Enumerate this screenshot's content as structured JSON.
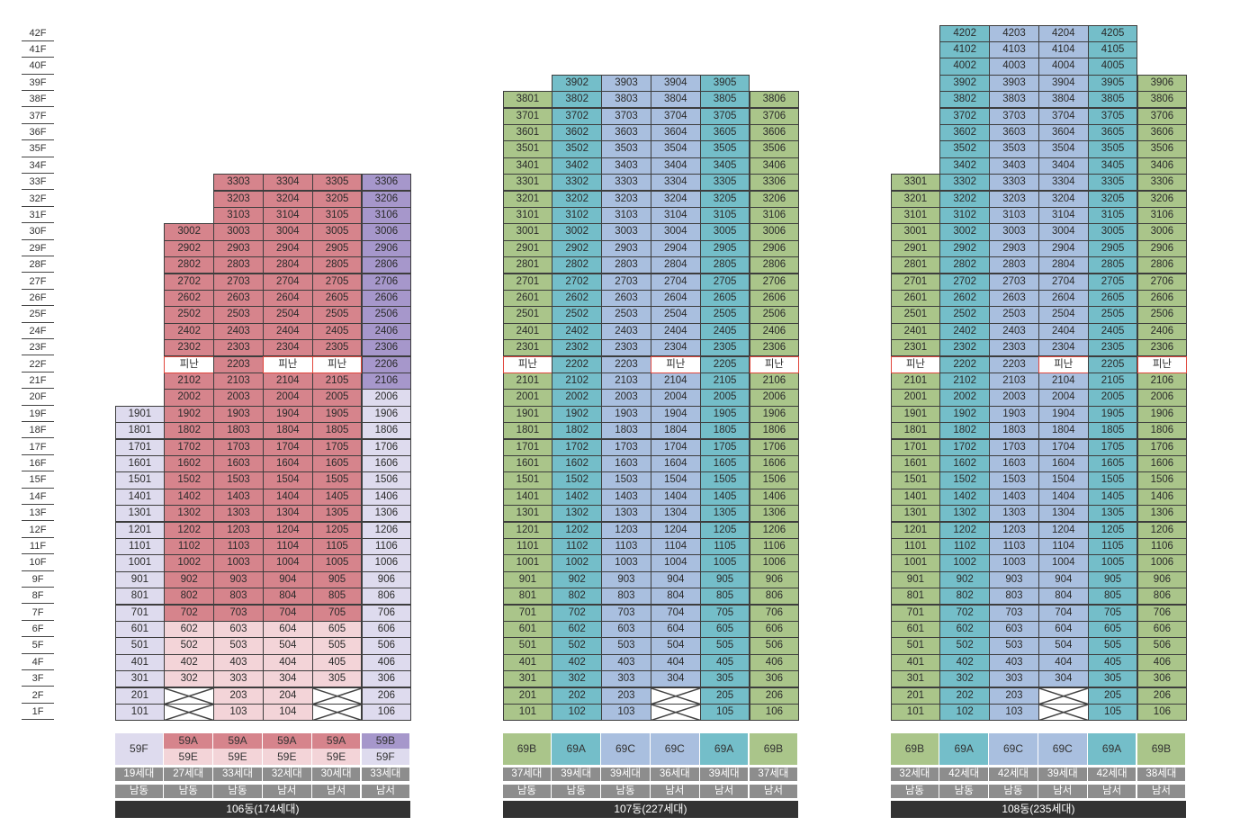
{
  "colors": {
    "pink_dark": "#d6848c",
    "pink_light": "#f3d4d8",
    "purple": "#a697cb",
    "lavender": "#dedbee",
    "green": "#aac58a",
    "teal": "#74bec9",
    "blue_light": "#a9bfdf",
    "refuge_border": "#e0463c",
    "band": "#8d8d8d",
    "dark": "#333333"
  },
  "floors": [
    "42F",
    "41F",
    "40F",
    "39F",
    "38F",
    "37F",
    "36F",
    "35F",
    "34F",
    "33F",
    "32F",
    "31F",
    "30F",
    "29F",
    "28F",
    "27F",
    "26F",
    "25F",
    "24F",
    "23F",
    "22F",
    "21F",
    "20F",
    "19F",
    "18F",
    "17F",
    "16F",
    "15F",
    "14F",
    "13F",
    "12F",
    "11F",
    "10F",
    "9F",
    "8F",
    "7F",
    "6F",
    "5F",
    "4F",
    "3F",
    "2F",
    "1F"
  ],
  "refuge_label": "피난",
  "buildings": [
    {
      "name": "106동(174세대)",
      "columns": [
        {
          "line": "01",
          "top": 19,
          "refuge": [],
          "empty": [],
          "type": "59F",
          "type_sub": "",
          "households": "19세대",
          "direction": "남동",
          "colors": [
            {
              "from": 1,
              "to": 19,
              "color": "lavender"
            }
          ],
          "type_color": "lavender",
          "sub_color": ""
        },
        {
          "line": "02",
          "top": 30,
          "refuge": [
            22
          ],
          "empty": [
            1,
            2
          ],
          "type": "59A",
          "type_sub": "59E",
          "households": "27세대",
          "direction": "남동",
          "colors": [
            {
              "from": 1,
              "to": 6,
              "color": "pink_light"
            },
            {
              "from": 7,
              "to": 30,
              "color": "pink_dark"
            }
          ],
          "type_color": "pink_dark",
          "sub_color": "pink_light"
        },
        {
          "line": "03",
          "top": 33,
          "refuge": [],
          "empty": [],
          "type": "59A",
          "type_sub": "59E",
          "households": "33세대",
          "direction": "남동",
          "colors": [
            {
              "from": 1,
              "to": 6,
              "color": "pink_light"
            },
            {
              "from": 7,
              "to": 33,
              "color": "pink_dark"
            }
          ],
          "type_color": "pink_dark",
          "sub_color": "pink_light"
        },
        {
          "line": "04",
          "top": 33,
          "refuge": [
            22
          ],
          "empty": [],
          "type": "59A",
          "type_sub": "59E",
          "households": "32세대",
          "direction": "남서",
          "colors": [
            {
              "from": 1,
              "to": 6,
              "color": "pink_light"
            },
            {
              "from": 7,
              "to": 33,
              "color": "pink_dark"
            }
          ],
          "type_color": "pink_dark",
          "sub_color": "pink_light"
        },
        {
          "line": "05",
          "top": 33,
          "refuge": [
            22
          ],
          "empty": [
            1,
            2
          ],
          "type": "59A",
          "type_sub": "59E",
          "households": "30세대",
          "direction": "남서",
          "colors": [
            {
              "from": 1,
              "to": 6,
              "color": "pink_light"
            },
            {
              "from": 7,
              "to": 33,
              "color": "pink_dark"
            }
          ],
          "type_color": "pink_dark",
          "sub_color": "pink_light"
        },
        {
          "line": "06",
          "top": 33,
          "refuge": [],
          "empty": [],
          "type": "59B",
          "type_sub": "59F",
          "households": "33세대",
          "direction": "남서",
          "colors": [
            {
              "from": 1,
              "to": 20,
              "color": "lavender"
            },
            {
              "from": 21,
              "to": 33,
              "color": "purple"
            }
          ],
          "type_color": "purple",
          "sub_color": "lavender"
        }
      ]
    },
    {
      "name": "107동(227세대)",
      "columns": [
        {
          "line": "01",
          "top": 38,
          "refuge": [
            22
          ],
          "empty": [],
          "type": "69B",
          "type_sub": "",
          "households": "37세대",
          "direction": "남동",
          "colors": [
            {
              "from": 1,
              "to": 38,
              "color": "green"
            }
          ],
          "type_color": "green",
          "sub_color": ""
        },
        {
          "line": "02",
          "top": 39,
          "refuge": [],
          "empty": [],
          "type": "69A",
          "type_sub": "",
          "households": "39세대",
          "direction": "남동",
          "colors": [
            {
              "from": 1,
              "to": 39,
              "color": "teal"
            }
          ],
          "type_color": "teal",
          "sub_color": ""
        },
        {
          "line": "03",
          "top": 39,
          "refuge": [],
          "empty": [],
          "type": "69C",
          "type_sub": "",
          "households": "39세대",
          "direction": "남동",
          "colors": [
            {
              "from": 1,
              "to": 39,
              "color": "blue_light"
            }
          ],
          "type_color": "blue_light",
          "sub_color": ""
        },
        {
          "line": "04",
          "top": 39,
          "refuge": [
            22
          ],
          "empty": [
            1,
            2
          ],
          "type": "69C",
          "type_sub": "",
          "households": "36세대",
          "direction": "남서",
          "colors": [
            {
              "from": 1,
              "to": 39,
              "color": "blue_light"
            }
          ],
          "type_color": "blue_light",
          "sub_color": ""
        },
        {
          "line": "05",
          "top": 39,
          "refuge": [],
          "empty": [],
          "type": "69A",
          "type_sub": "",
          "households": "39세대",
          "direction": "남서",
          "colors": [
            {
              "from": 1,
              "to": 39,
              "color": "teal"
            }
          ],
          "type_color": "teal",
          "sub_color": ""
        },
        {
          "line": "06",
          "top": 38,
          "refuge": [
            22
          ],
          "empty": [],
          "type": "69B",
          "type_sub": "",
          "households": "37세대",
          "direction": "남서",
          "colors": [
            {
              "from": 1,
              "to": 38,
              "color": "green"
            }
          ],
          "type_color": "green",
          "sub_color": ""
        }
      ]
    },
    {
      "name": "108동(235세대)",
      "columns": [
        {
          "line": "01",
          "top": 33,
          "refuge": [
            22
          ],
          "empty": [],
          "type": "69B",
          "type_sub": "",
          "households": "32세대",
          "direction": "남동",
          "colors": [
            {
              "from": 1,
              "to": 33,
              "color": "green"
            }
          ],
          "type_color": "green",
          "sub_color": ""
        },
        {
          "line": "02",
          "top": 42,
          "refuge": [],
          "empty": [],
          "type": "69A",
          "type_sub": "",
          "households": "42세대",
          "direction": "남동",
          "colors": [
            {
              "from": 1,
              "to": 42,
              "color": "teal"
            }
          ],
          "type_color": "teal",
          "sub_color": ""
        },
        {
          "line": "03",
          "top": 42,
          "refuge": [],
          "empty": [],
          "type": "69C",
          "type_sub": "",
          "households": "42세대",
          "direction": "남동",
          "colors": [
            {
              "from": 1,
              "to": 42,
              "color": "blue_light"
            }
          ],
          "type_color": "blue_light",
          "sub_color": ""
        },
        {
          "line": "04",
          "top": 42,
          "refuge": [
            22
          ],
          "empty": [
            1,
            2
          ],
          "type": "69C",
          "type_sub": "",
          "households": "39세대",
          "direction": "남서",
          "colors": [
            {
              "from": 1,
              "to": 42,
              "color": "blue_light"
            }
          ],
          "type_color": "blue_light",
          "sub_color": ""
        },
        {
          "line": "05",
          "top": 42,
          "refuge": [],
          "empty": [],
          "type": "69A",
          "type_sub": "",
          "households": "42세대",
          "direction": "남서",
          "colors": [
            {
              "from": 1,
              "to": 42,
              "color": "teal"
            }
          ],
          "type_color": "teal",
          "sub_color": ""
        },
        {
          "line": "06",
          "top": 39,
          "refuge": [
            22
          ],
          "empty": [],
          "type": "69B",
          "type_sub": "",
          "households": "38세대",
          "direction": "남서",
          "colors": [
            {
              "from": 1,
              "to": 39,
              "color": "green"
            }
          ],
          "type_color": "green",
          "sub_color": ""
        }
      ]
    }
  ]
}
